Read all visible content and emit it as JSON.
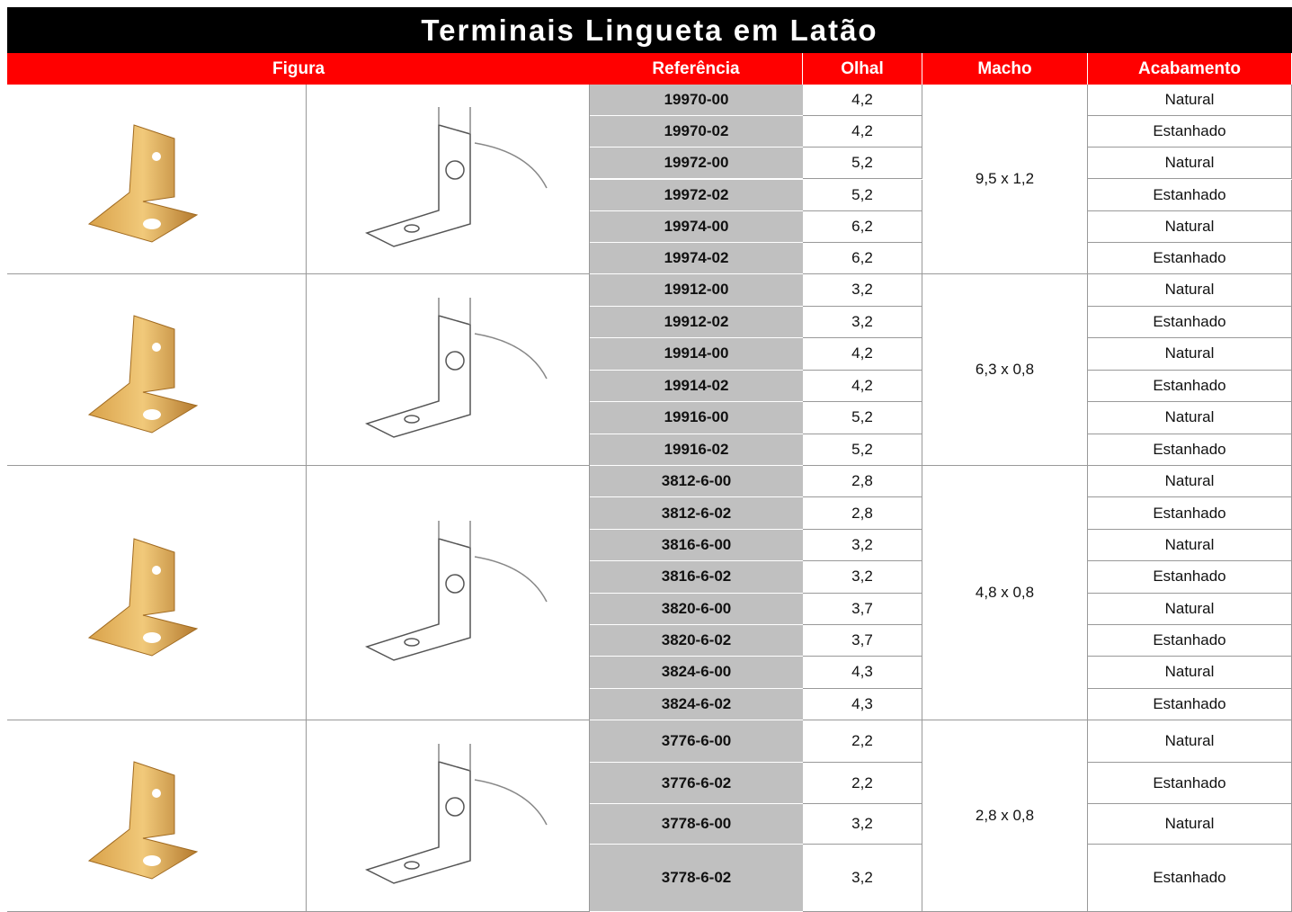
{
  "title": "Terminais Lingueta em Latão",
  "header": [
    "Figura",
    "Referência",
    "Olhal",
    "Macho",
    "Acabamento"
  ],
  "groups": [
    {
      "macho": "9,5 x 1,2",
      "rows": [
        [
          "19970-00",
          "4,2",
          "Natural"
        ],
        [
          "19970-02",
          "4,2",
          "Estanhado"
        ],
        [
          "19972-00",
          "5,2",
          "Natural"
        ],
        [
          "19972-02",
          "5,2",
          "Estanhado"
        ],
        [
          "19974-00",
          "6,2",
          "Natural"
        ],
        [
          "19974-02",
          "6,2",
          "Estanhado"
        ]
      ]
    },
    {
      "macho": "6,3 x 0,8",
      "rows": [
        [
          "19912-00",
          "3,2",
          "Natural"
        ],
        [
          "19912-02",
          "3,2",
          "Estanhado"
        ],
        [
          "19914-00",
          "4,2",
          "Natural"
        ],
        [
          "19914-02",
          "4,2",
          "Estanhado"
        ],
        [
          "19916-00",
          "5,2",
          "Natural"
        ],
        [
          "19916-02",
          "5,2",
          "Estanhado"
        ]
      ]
    },
    {
      "macho": "4,8 x 0,8",
      "rows": [
        [
          "3812-6-00",
          "2,8",
          "Natural"
        ],
        [
          "3812-6-02",
          "2,8",
          "Estanhado"
        ],
        [
          "3816-6-00",
          "3,2",
          "Natural"
        ],
        [
          "3816-6-02",
          "3,2",
          "Estanhado"
        ],
        [
          "3820-6-00",
          "3,7",
          "Natural"
        ],
        [
          "3820-6-02",
          "3,7",
          "Estanhado"
        ],
        [
          "3824-6-00",
          "4,3",
          "Natural"
        ],
        [
          "3824-6-02",
          "4,3",
          "Estanhado"
        ]
      ]
    },
    {
      "macho": "2,8 x 0,8",
      "rows": [
        [
          "3776-6-00",
          "2,2",
          "Natural"
        ],
        [
          "3776-6-02",
          "2,2",
          "Estanhado"
        ],
        [
          "3778-6-00",
          "3,2",
          "Natural"
        ],
        [
          "3778-6-02",
          "3,2",
          "Estanhado"
        ]
      ]
    }
  ]
}
